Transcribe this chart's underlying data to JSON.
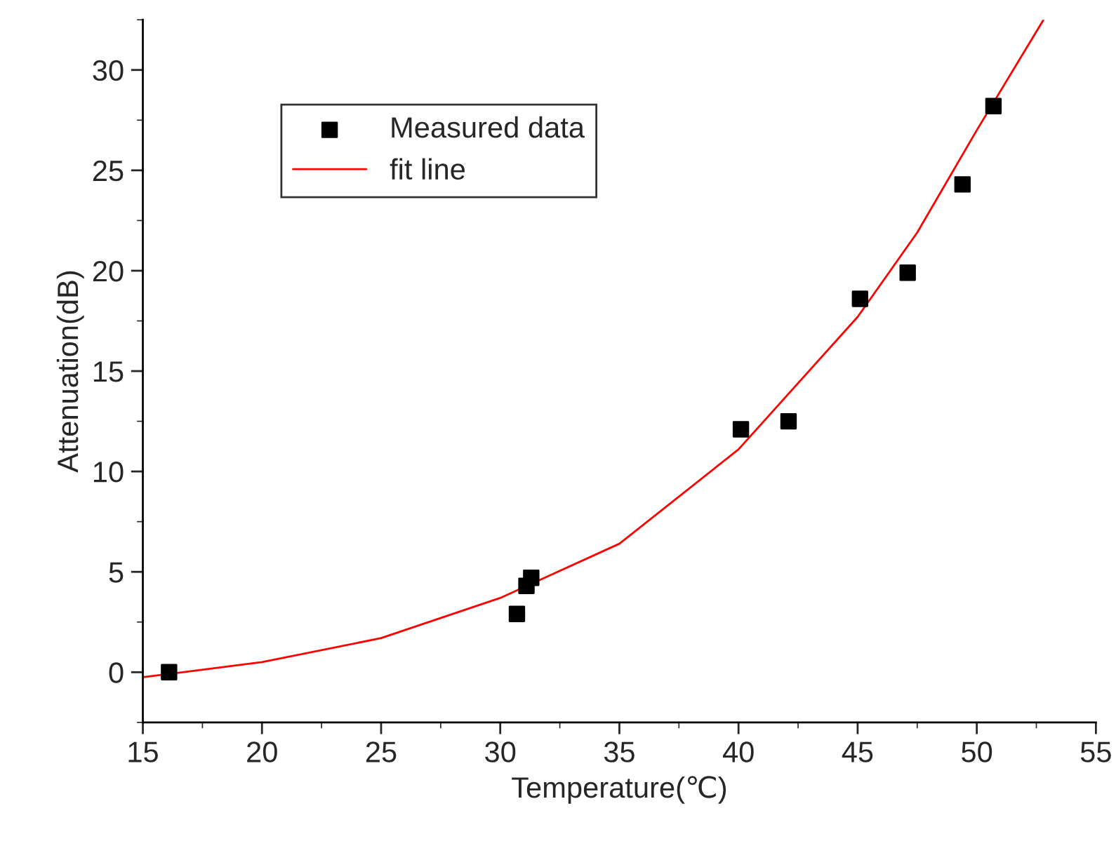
{
  "chart_data": {
    "type": "scatter",
    "xlabel": "Temperature(℃)",
    "ylabel": "Attenuation(dB)",
    "xlim": [
      15,
      55
    ],
    "xticks": [
      15,
      20,
      25,
      30,
      35,
      40,
      45,
      50,
      55
    ],
    "ylim": [
      -2.5,
      32.5
    ],
    "yticks": [
      0,
      5,
      10,
      15,
      20,
      25,
      30
    ],
    "grid": false,
    "legend": "top left",
    "series": [
      {
        "name": "Measured data",
        "marker": "square",
        "color": "#000000",
        "x": [
          16.1,
          30.7,
          31.1,
          31.3,
          40.1,
          42.1,
          45.1,
          47.1,
          49.4,
          50.7
        ],
        "values": [
          0,
          2.9,
          4.3,
          4.7,
          12.1,
          12.5,
          18.6,
          19.9,
          24.3,
          28.2
        ]
      },
      {
        "name": "fit line",
        "type": "line",
        "marker": "none",
        "line_style": "solid",
        "color": "#ff0000",
        "x": [
          15,
          20,
          25,
          30,
          35,
          40,
          45,
          47.5,
          50,
          52.8
        ],
        "values": [
          -0.25,
          0.5,
          1.7,
          3.7,
          6.4,
          11.1,
          17.7,
          21.9,
          27,
          32.5
        ]
      }
    ]
  }
}
